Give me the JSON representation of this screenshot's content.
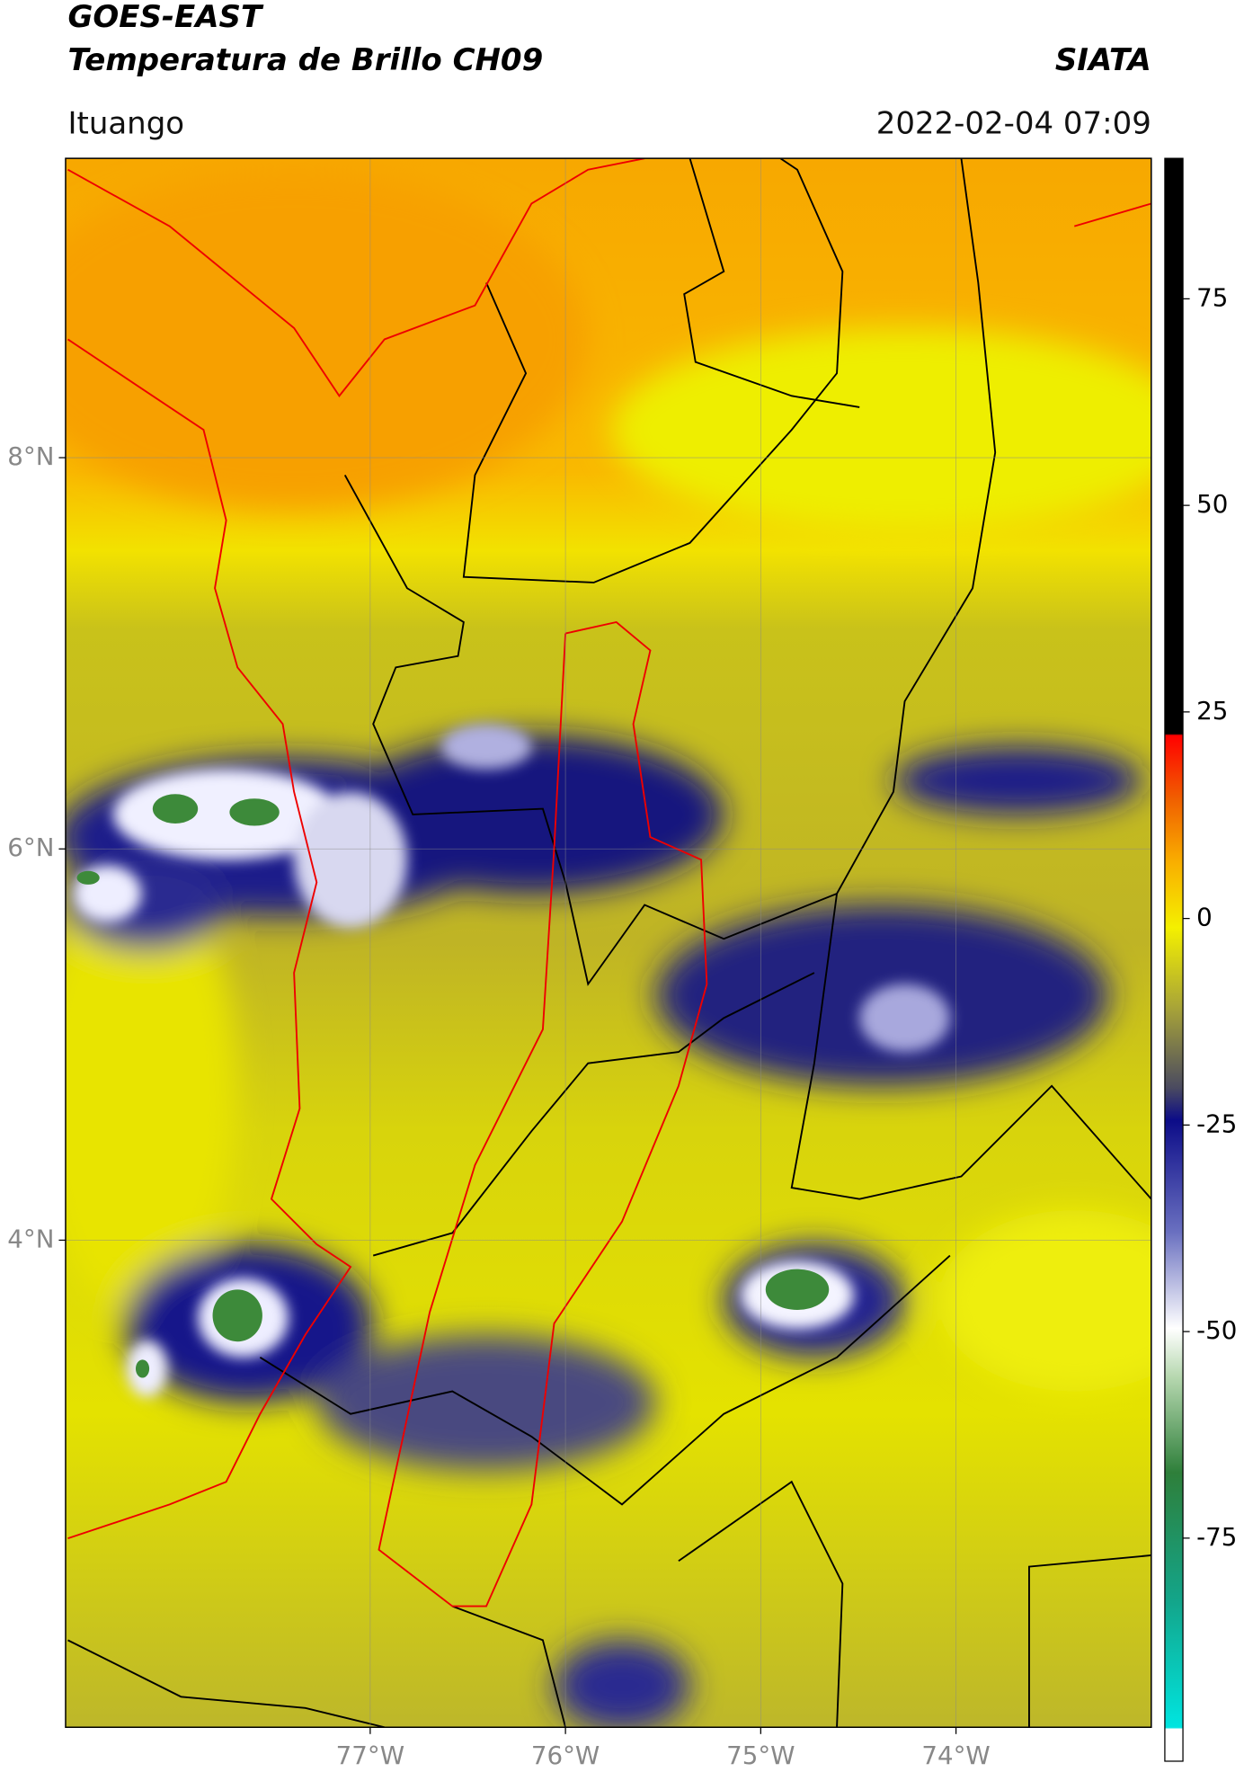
{
  "header": {
    "title": "GOES-EAST",
    "subtitle": "Temperatura de Brillo CH09",
    "brand": "SIATA",
    "location": "Ituango",
    "datetime": "2022-02-04 07:09"
  },
  "map": {
    "xlim": [
      -78.56,
      -73.0
    ],
    "ylim": [
      1.51,
      9.53
    ],
    "xticks": [
      {
        "value": -77,
        "label": "77°W"
      },
      {
        "value": -76,
        "label": "76°W"
      },
      {
        "value": -75,
        "label": "75°W"
      },
      {
        "value": -74,
        "label": "74°W"
      }
    ],
    "yticks": [
      {
        "value": 8,
        "label": "8°N"
      },
      {
        "value": 6,
        "label": "6°N"
      },
      {
        "value": 4,
        "label": "4°N"
      }
    ],
    "grid": true
  },
  "colorbar": {
    "lim": [
      -102,
      92
    ],
    "ticks": [
      75,
      50,
      25,
      0,
      -25,
      -50,
      -75
    ]
  }
}
